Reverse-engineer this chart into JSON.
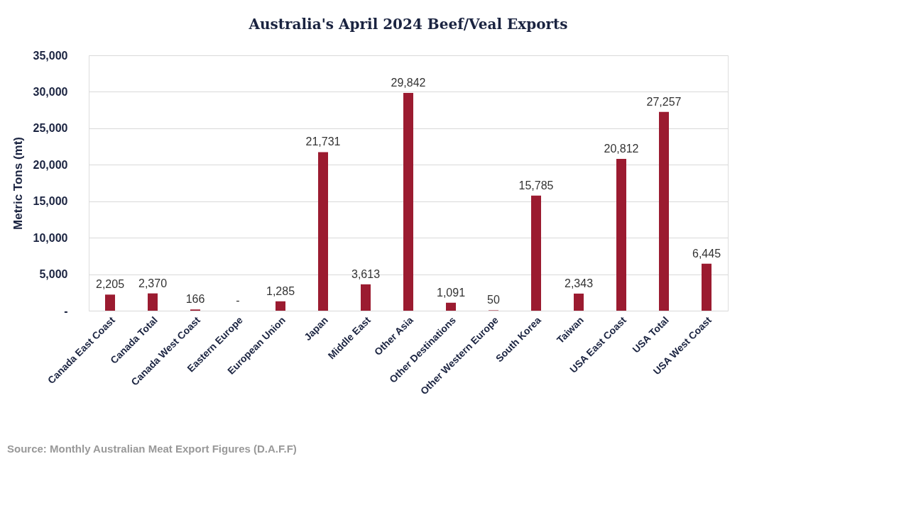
{
  "chart_data": {
    "type": "bar",
    "title": "Australia's April 2024 Beef/Veal Exports",
    "ylabel": "Metric Tons (mt)",
    "categories": [
      "Canada East Coast",
      "Canada Total",
      "Canada West Coast",
      "Eastern Europe",
      "European Union",
      "Japan",
      "Middle East",
      "Other Asia",
      "Other Destinations",
      "Other Western Europe",
      "South Korea",
      "Taiwan",
      "USA East Coast",
      "USA Total",
      "USA West Coast"
    ],
    "values": [
      2205,
      2370,
      166,
      0,
      1285,
      21731,
      3613,
      29842,
      1091,
      50,
      15785,
      2343,
      20812,
      27257,
      6445
    ],
    "value_labels": [
      "2,205",
      "2,370",
      "166",
      "-",
      "1,285",
      "21,731",
      "3,613",
      "29,842",
      "1,091",
      "50",
      "15,785",
      "2,343",
      "20,812",
      "27,257",
      "6,445"
    ],
    "color": "#9b1b30",
    "ylim": [
      0,
      35000
    ],
    "yticks": [
      {
        "value": 0,
        "label": "-"
      },
      {
        "value": 5000,
        "label": "5,000"
      },
      {
        "value": 10000,
        "label": "10,000"
      },
      {
        "value": 15000,
        "label": "15,000"
      },
      {
        "value": 20000,
        "label": "20,000"
      },
      {
        "value": 25000,
        "label": "25,000"
      },
      {
        "value": 30000,
        "label": "30,000"
      },
      {
        "value": 35000,
        "label": "35,000"
      }
    ],
    "grid": "y",
    "annotations": [
      "Source: Monthly Australian Meat Export Figures (D.A.F.F)"
    ]
  }
}
